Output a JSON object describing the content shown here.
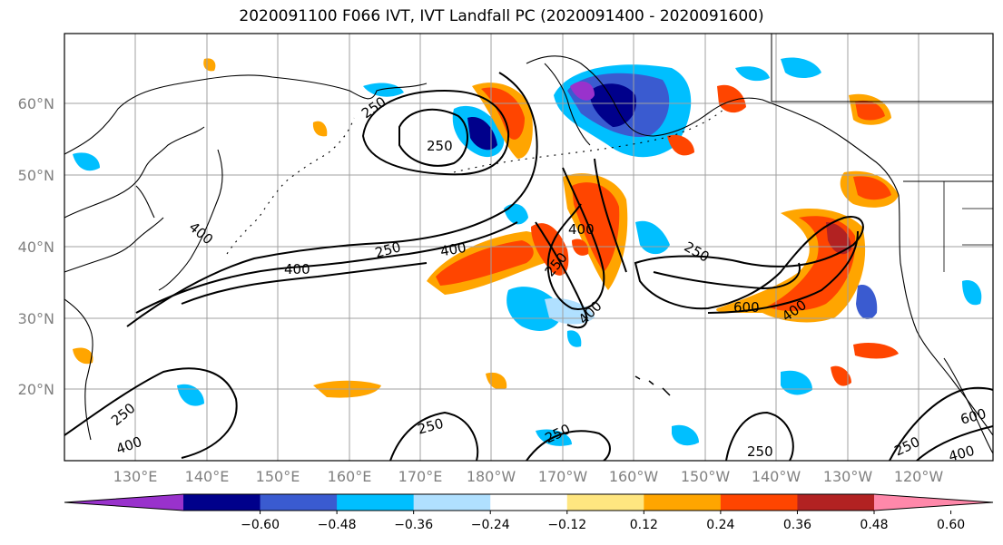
{
  "title": "2020091100 F066 IVT, IVT Landfall PC (2020091400 - 2020091600)",
  "lat_labels": [
    "60°N",
    "50°N",
    "40°N",
    "30°N",
    "20°N"
  ],
  "lon_labels": [
    "130°E",
    "140°E",
    "150°E",
    "160°E",
    "170°E",
    "180°W",
    "170°W",
    "160°W",
    "150°W",
    "140°W",
    "130°W",
    "120°W"
  ],
  "contour_labels": [
    "250",
    "250",
    "400",
    "400",
    "250",
    "400",
    "400",
    "250",
    "400",
    "250",
    "600",
    "400",
    "250",
    "400",
    "250",
    "250",
    "250",
    "600",
    "250",
    "400"
  ],
  "colorbar": {
    "colors": [
      "#9932cc",
      "#00008b",
      "#3a5bd0",
      "#00bfff",
      "#b0e0ff",
      "#ffffff",
      "#ffe680",
      "#ffa500",
      "#ff4500",
      "#b22222",
      "#ff88aa"
    ],
    "tick_labels": [
      "−0.60",
      "−0.48",
      "−0.36",
      "−0.24",
      "−0.12",
      "0.12",
      "0.24",
      "0.36",
      "0.48",
      "0.60"
    ]
  },
  "colors": {
    "grid": "#a0a0a0",
    "coast": "#000000",
    "contour": "#000000"
  }
}
